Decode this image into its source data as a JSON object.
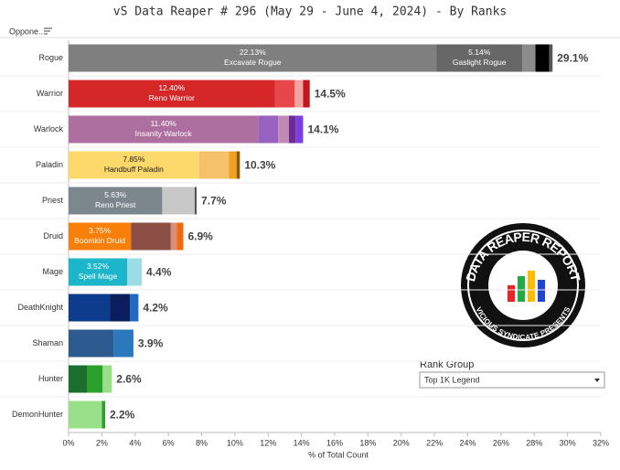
{
  "chart_data": {
    "type": "stacked-bar-horizontal",
    "title": "vS Data Reaper #  296 (May 29 - June 4, 2024) - By Ranks",
    "row_header": "Oppone..",
    "x_label": "% of Total Count",
    "xlim": [
      0,
      32
    ],
    "xticks": [
      {
        "value": 0,
        "label": "0%"
      },
      {
        "value": 2,
        "label": "2%"
      },
      {
        "value": 4,
        "label": "4%"
      },
      {
        "value": 6,
        "label": "6%"
      },
      {
        "value": 8,
        "label": "8%"
      },
      {
        "value": 10,
        "label": "10%"
      },
      {
        "value": 12,
        "label": "12%"
      },
      {
        "value": 14,
        "label": "14%"
      },
      {
        "value": 16,
        "label": "16%"
      },
      {
        "value": 18,
        "label": "18%"
      },
      {
        "value": 20,
        "label": "20%"
      },
      {
        "value": 22,
        "label": "22%"
      },
      {
        "value": 24,
        "label": "24%"
      },
      {
        "value": 26,
        "label": "26%"
      },
      {
        "value": 28,
        "label": "28%"
      },
      {
        "value": 30,
        "label": "30%"
      },
      {
        "value": 32,
        "label": "32%"
      }
    ],
    "categories": [
      "Rogue",
      "Warrior",
      "Warlock",
      "Paladin",
      "Priest",
      "Druid",
      "Mage",
      "DeathKnight",
      "Shaman",
      "Hunter",
      "DemonHunter"
    ],
    "totals": [
      29.1,
      14.5,
      14.1,
      10.3,
      7.7,
      6.9,
      4.4,
      4.2,
      3.9,
      2.6,
      2.2
    ],
    "total_labels": [
      "29.1%",
      "14.5%",
      "14.1%",
      "10.3%",
      "7.7%",
      "6.9%",
      "4.4%",
      "4.2%",
      "3.9%",
      "2.6%",
      "2.2%"
    ],
    "stacks": [
      [
        {
          "value": 22.13,
          "value_label": "22.13%",
          "name": "Excavate Rogue",
          "color": "#7f7f7f"
        },
        {
          "value": 5.14,
          "value_label": "5.14%",
          "name": "Gaslight Rogue",
          "color": "#676767"
        },
        {
          "value": 0.8,
          "color": "#8c8c8c"
        },
        {
          "value": 0.83,
          "color": "#000000"
        },
        {
          "value": 0.2,
          "color": "#555555"
        }
      ],
      [
        {
          "value": 12.4,
          "value_label": "12.40%",
          "name": "Reno Warrior",
          "color": "#d62728"
        },
        {
          "value": 1.2,
          "color": "#e8474a"
        },
        {
          "value": 0.5,
          "color": "#f4a3a3"
        },
        {
          "value": 0.4,
          "color": "#c4161c"
        }
      ],
      [
        {
          "value": 11.4,
          "value_label": "11.40%",
          "name": "Insanity Warlock",
          "color": "#ad6f9f"
        },
        {
          "value": 1.2,
          "color": "#9a62c0"
        },
        {
          "value": 0.65,
          "color": "#c08ab4"
        },
        {
          "value": 0.4,
          "color": "#6a2c91"
        },
        {
          "value": 0.45,
          "color": "#7b3fe0"
        }
      ],
      [
        {
          "value": 7.85,
          "value_label": "7.85%",
          "name": "Handbuff Paladin",
          "color": "#fdd86b"
        },
        {
          "value": 1.8,
          "color": "#f5c26a"
        },
        {
          "value": 0.45,
          "color": "#f0a020"
        },
        {
          "value": 0.2,
          "color": "#8a5a00"
        }
      ],
      [
        {
          "value": 5.63,
          "value_label": "5.63%",
          "name": "Reno Priest",
          "color": "#7c868d"
        },
        {
          "value": 1.95,
          "color": "#c8c8c8"
        },
        {
          "value": 0.12,
          "color": "#555555"
        }
      ],
      [
        {
          "value": 3.75,
          "value_label": "3.75%",
          "name": "Boomkin Druid",
          "color": "#f77f0a"
        },
        {
          "value": 2.4,
          "color": "#8c4f45"
        },
        {
          "value": 0.35,
          "color": "#d88f7a"
        },
        {
          "value": 0.4,
          "color": "#f06a10"
        }
      ],
      [
        {
          "value": 3.52,
          "value_label": "3.52%",
          "name": "Spell Mage",
          "color": "#1cb5c9"
        },
        {
          "value": 0.88,
          "color": "#9bdce6"
        }
      ],
      [
        {
          "value": 2.5,
          "color": "#0d3c8c"
        },
        {
          "value": 1.2,
          "color": "#0a1e5e"
        },
        {
          "value": 0.5,
          "color": "#1f69c2"
        }
      ],
      [
        {
          "value": 2.7,
          "color": "#2d5b8f"
        },
        {
          "value": 1.2,
          "color": "#2b78bd"
        }
      ],
      [
        {
          "value": 1.1,
          "color": "#1b6e2e"
        },
        {
          "value": 0.95,
          "color": "#2ca02c"
        },
        {
          "value": 0.55,
          "color": "#98df8a"
        }
      ],
      [
        {
          "value": 2.0,
          "color": "#98df8a"
        },
        {
          "value": 0.2,
          "color": "#2ca02c"
        }
      ]
    ]
  },
  "filter": {
    "label": "Rank Group",
    "selected": "Top 1K Legend"
  },
  "logo": {
    "title": "DATA REAPER REPORT",
    "subtitle": "VICIOUS SYNDICATE PRESENTS"
  }
}
